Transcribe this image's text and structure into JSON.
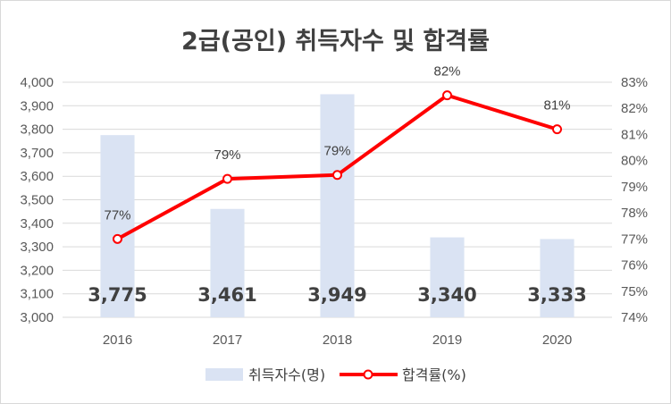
{
  "chart_data": {
    "type": "bar",
    "title": "2급(공인) 취득자수 및 합격률",
    "categories": [
      "2016",
      "2017",
      "2018",
      "2019",
      "2020"
    ],
    "series": [
      {
        "name": "취득자수(명)",
        "type": "bar",
        "axis": "left",
        "values": [
          3775,
          3461,
          3949,
          3340,
          3333
        ],
        "labels": [
          "3,775",
          "3,461",
          "3,949",
          "3,340",
          "3,333"
        ],
        "color": "#dae3f3"
      },
      {
        "name": "합격률(%)",
        "type": "line",
        "axis": "right",
        "values": [
          77.0,
          79.3,
          79.45,
          82.5,
          81.2
        ],
        "labels": [
          "77%",
          "79%",
          "79%",
          "82%",
          "81%"
        ],
        "color": "#ff0000"
      }
    ],
    "y_left": {
      "ylim": [
        3000,
        4000
      ],
      "ticks": [
        3000,
        3100,
        3200,
        3300,
        3400,
        3500,
        3600,
        3700,
        3800,
        3900,
        4000
      ],
      "tick_labels": [
        "3,000",
        "3,100",
        "3,200",
        "3,300",
        "3,400",
        "3,500",
        "3,600",
        "3,700",
        "3,800",
        "3,900",
        "4,000"
      ]
    },
    "y_right": {
      "ylim": [
        74,
        83
      ],
      "ticks": [
        74,
        75,
        76,
        77,
        78,
        79,
        80,
        81,
        82,
        83
      ],
      "tick_labels": [
        "74%",
        "75%",
        "76%",
        "77%",
        "78%",
        "79%",
        "80%",
        "81%",
        "82%",
        "83%"
      ]
    },
    "grid": true,
    "legend": "bottom"
  }
}
